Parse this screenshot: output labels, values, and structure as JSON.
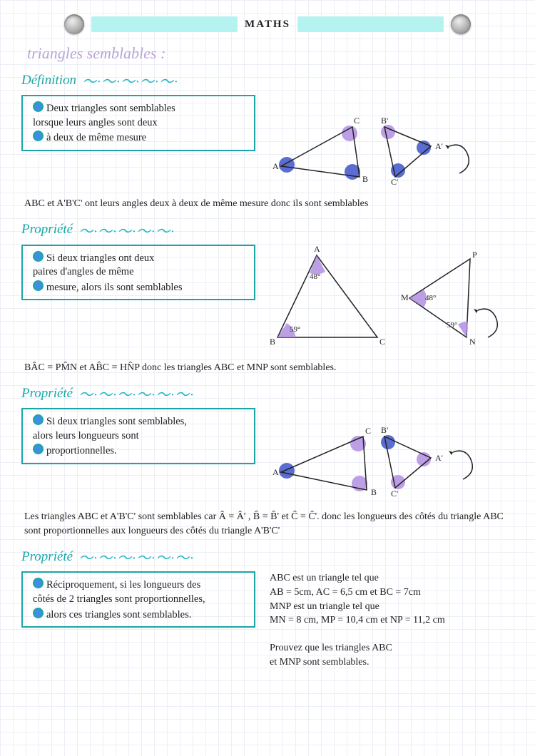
{
  "colors": {
    "highlight_band": "#b5f3f0",
    "header_teal": "#1aa6a6",
    "lavender": "#b8a4d6",
    "box_border": "#1aa6a6",
    "bullet_fill": "#3e8fe0",
    "wave_color": "#2bb7c4",
    "angle_fill_purple": "#b08ee0",
    "angle_fill_blue": "#3e54c8",
    "angle_outline": "#4a2c8f",
    "ink": "#222222"
  },
  "header": {
    "title": "MATHS"
  },
  "subtitle": "triangles semblables :",
  "sections": [
    {
      "heading": "Définition",
      "wave": "～·～·～·～·～·",
      "box_lines": [
        "Deux triangles sont semblables",
        "lorsque leurs angles sont deux",
        "à deux de même mesure"
      ],
      "para": "ABC et A'B'C' ont leurs angles deux à deux de même mesure donc ils sont semblables",
      "fig": "pair_ABC"
    },
    {
      "heading": "Propriété",
      "wave": "～·～·～·～·～·",
      "box_lines": [
        "Si deux triangles ont deux",
        "paires d'angles de même",
        "mesure, alors ils sont semblables"
      ],
      "para": "BÂC = PM̂N  et  AB̂C = HN̂P  donc les triangles ABC et MNP sont semblables.",
      "fig": "angles_48_59"
    },
    {
      "heading": "Propriété",
      "wave": "～·～·～·～·～·～·",
      "box_lines": [
        "Si deux triangles sont semblables,",
        "alors leurs longueurs sont",
        "proportionnelles."
      ],
      "para": "Les triangles ABC et A'B'C' sont semblables car  Â = Â' ,  B̂ = B̂'  et  Ĉ = Ĉ'. donc les longueurs des côtés du triangle ABC sont proportionnelles aux longueurs des côtés du triangle A'B'C'",
      "fig": "pair_ABC2"
    },
    {
      "heading": "Propriété",
      "wave": "～·～·～·～·～·～·",
      "box_lines": [
        "Réciproquement, si les longueurs des",
        "côtés de 2 triangles sont proportionnelles,",
        "alors ces triangles sont semblables."
      ],
      "side_text": [
        "ABC est un triangle tel que",
        "AB = 5cm, AC = 6,5 cm et BC = 7cm",
        "MNP est un triangle tel que",
        "MN = 8 cm, MP = 10,4 cm et NP = 11,2 cm",
        "",
        "Prouvez que les triangles ABC",
        "et MNP sont semblables."
      ],
      "fig": "none"
    }
  ]
}
